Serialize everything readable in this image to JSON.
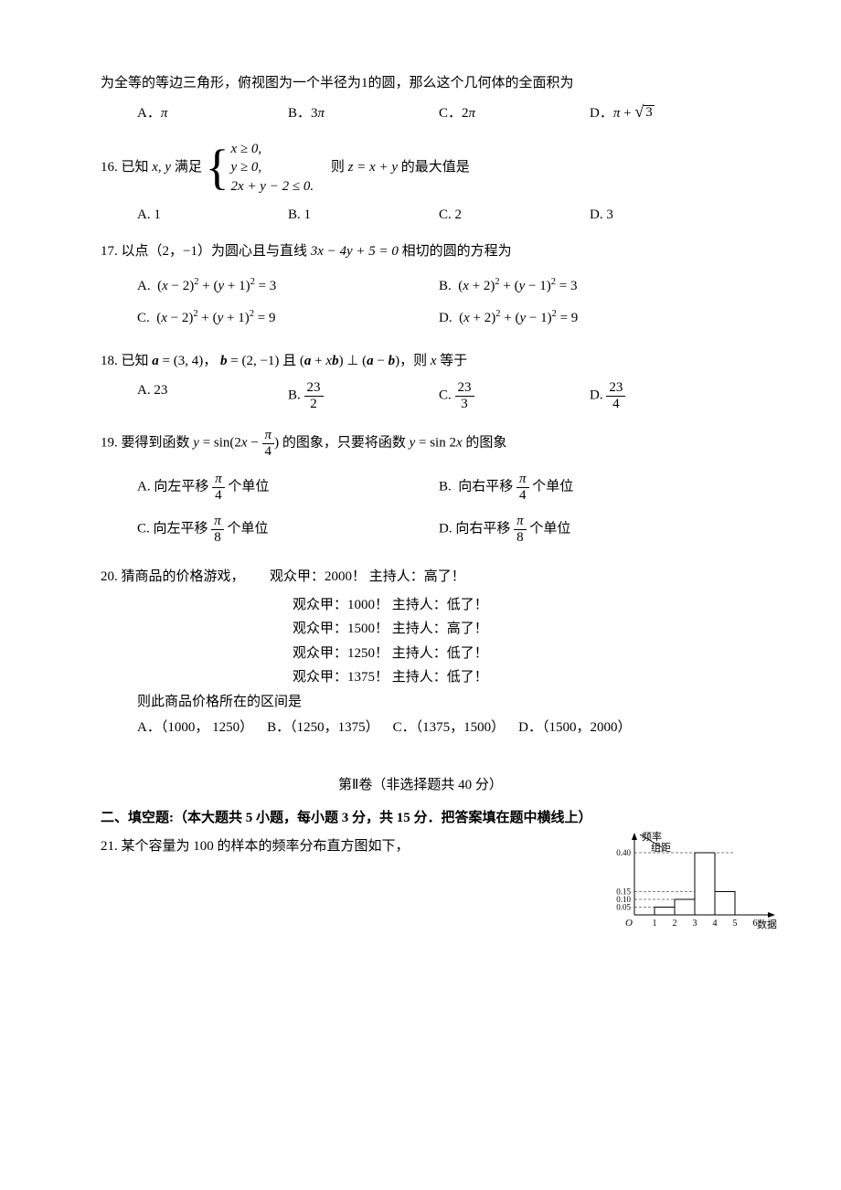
{
  "intro_line": "为全等的等边三角形，俯视图为一个半径为1的圆，那么这个几何体的全面积为",
  "q15_opts": {
    "A": "π",
    "B": "3π",
    "C": "2π",
    "D": "π + √3"
  },
  "q16": {
    "stem_pre": "16. 已知 ",
    "vars": "x, y",
    "stem_mid": " 满足 ",
    "cases": [
      "x ≥ 0,",
      "y ≥ 0,",
      "2x + y − 2 ≤ 0."
    ],
    "stem_post_pre": "则 ",
    "expr": "z = x + y",
    "stem_post_after": " 的最大值是",
    "opts": {
      "A": "1",
      "B": "1",
      "C": "2",
      "D": "3"
    }
  },
  "q17": {
    "stem_pre": "17. 以点（2，−1）为圆心且与直线 ",
    "line_eq": "3x − 4y + 5 = 0",
    "stem_post": " 相切的圆的方程为",
    "opts": {
      "A": "(x − 2)² + (y + 1)² = 3",
      "B": "(x + 2)² + (y − 1)² = 3",
      "C": "(x − 2)² + (y + 1)² = 9",
      "D": "(x + 2)² + (y − 1)² = 9"
    }
  },
  "q18": {
    "stem_pre": "18.  已知 ",
    "a": "a = (3, 4)",
    "sep1": "， ",
    "b": "b = (2, −1)",
    "mid": " 且 ",
    "perp": "(a + x b) ⊥ (a − b)",
    "stem_post": "，则 x 等于",
    "opts": {
      "A": "23",
      "B_num": "23",
      "B_den": "2",
      "C_num": "23",
      "C_den": "3",
      "D_num": "23",
      "D_den": "4"
    }
  },
  "q19": {
    "stem_pre": "19.  要得到函数 ",
    "f1_pre": "y = sin(2x − ",
    "f1_frac_num": "π",
    "f1_frac_den": "4",
    "f1_post": ")",
    "stem_mid": " 的图象，只要将函数 ",
    "f2": "y = sin 2x",
    "stem_post": " 的图象",
    "opts": {
      "A_pre": "向左平移 ",
      "A_num": "π",
      "A_den": "4",
      "A_post": " 个单位",
      "B_pre": "向右平移 ",
      "B_num": "π",
      "B_den": "4",
      "B_post": " 个单位",
      "C_pre": "向左平移 ",
      "C_num": "π",
      "C_den": "8",
      "C_post": " 个单位",
      "D_pre": "向右平移 ",
      "D_num": "π",
      "D_den": "8",
      "D_post": " 个单位"
    }
  },
  "q20": {
    "stem": "20.  猜商品的价格游戏，",
    "lines": [
      "观众甲：2000！ 主持人：高了！",
      "观众甲：1000！ 主持人：低了！",
      "观众甲：1500！ 主持人：高了！",
      "观众甲：1250！ 主持人：低了！",
      "观众甲：1375！ 主持人：低了！"
    ],
    "concl": "则此商品价格所在的区间是",
    "opts": {
      "A": "（1000， 1250）",
      "B": "（1250，1375）",
      "C": "（1375，1500）",
      "D": "（1500，2000）"
    }
  },
  "section2_title": "第Ⅱ卷（非选择题共 40 分）",
  "section2_sub": "二、填空题:（本大题共 5 小题，每小题 3 分，共 15 分．把答案填在题中横线上）",
  "q21": "21.  某个容量为 100 的样本的频率分布直方图如下，",
  "histogram": {
    "y_label_top": "频率",
    "y_label_bottom": "组距",
    "x_label": "数据",
    "y_ticks": [
      "0.40",
      "0.15",
      "0.10",
      "0.05"
    ],
    "x_ticks": [
      "1",
      "2",
      "3",
      "4",
      "5",
      "6"
    ],
    "bars": [
      {
        "x0": 1,
        "x1": 2,
        "h": 0.05,
        "color": "#ffffff"
      },
      {
        "x0": 2,
        "x1": 3,
        "h": 0.1,
        "color": "#ffffff"
      },
      {
        "x0": 3,
        "x1": 4,
        "h": 0.4,
        "color": "#ffffff"
      },
      {
        "x0": 4,
        "x1": 5,
        "h": 0.15,
        "color": "#ffffff"
      }
    ],
    "dashed_levels": [
      0.05,
      0.1,
      0.15,
      0.4
    ],
    "axis_color": "#000000",
    "dash_color": "#000000",
    "plot": {
      "width": 190,
      "height": 108,
      "x_origin": 34,
      "y_origin": 92,
      "x_unit": 22,
      "y_scale": 170
    }
  }
}
